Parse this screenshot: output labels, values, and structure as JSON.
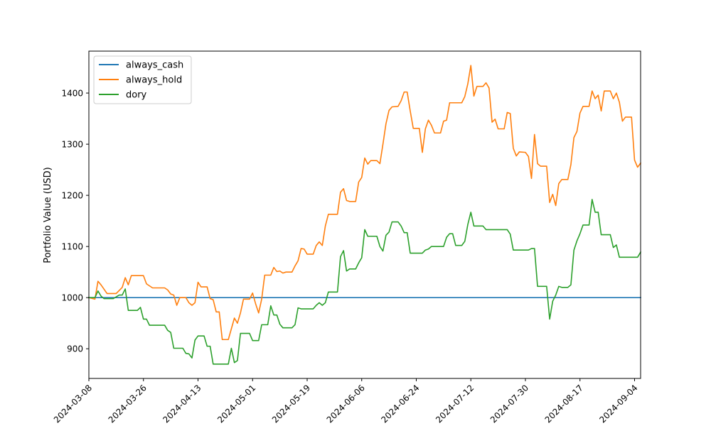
{
  "chart_data": {
    "type": "line",
    "title": "",
    "xlabel": "",
    "ylabel": "Portfolio Value (USD)",
    "x_tick_labels": [
      "2024-03-08",
      "2024-03-26",
      "2024-04-13",
      "2024-05-01",
      "2024-05-19",
      "2024-06-06",
      "2024-06-24",
      "2024-07-12",
      "2024-07-30",
      "2024-08-17",
      "2024-09-04"
    ],
    "y_ticks": [
      900,
      1000,
      1100,
      1200,
      1300,
      1400
    ],
    "xlim": [
      "2024-03-08",
      "2024-09-06"
    ],
    "ylim": [
      842,
      1482
    ],
    "grid": false,
    "legend_position": "upper-left",
    "series": [
      {
        "name": "always_cash",
        "color": "#1f77b4",
        "points": [
          [
            "2024-03-08",
            1000
          ],
          [
            "2024-09-06",
            1000
          ]
        ]
      },
      {
        "name": "always_hold",
        "color": "#ff7f0e",
        "points": [
          [
            "2024-03-08",
            1000
          ],
          [
            "2024-03-10",
            997
          ],
          [
            "2024-03-11",
            1032
          ],
          [
            "2024-03-12",
            1025
          ],
          [
            "2024-03-14",
            1008
          ],
          [
            "2024-03-17",
            1008
          ],
          [
            "2024-03-19",
            1020
          ],
          [
            "2024-03-20",
            1039
          ],
          [
            "2024-03-21",
            1025
          ],
          [
            "2024-03-22",
            1043
          ],
          [
            "2024-03-26",
            1043
          ],
          [
            "2024-03-27",
            1027
          ],
          [
            "2024-03-29",
            1019
          ],
          [
            "2024-04-02",
            1019
          ],
          [
            "2024-04-03",
            1015
          ],
          [
            "2024-04-04",
            1007
          ],
          [
            "2024-04-05",
            1005
          ],
          [
            "2024-04-06",
            985
          ],
          [
            "2024-04-07",
            1000
          ],
          [
            "2024-04-09",
            1000
          ],
          [
            "2024-04-10",
            990
          ],
          [
            "2024-04-11",
            985
          ],
          [
            "2024-04-12",
            990
          ],
          [
            "2024-04-13",
            1030
          ],
          [
            "2024-04-14",
            1021
          ],
          [
            "2024-04-16",
            1021
          ],
          [
            "2024-04-17",
            998
          ],
          [
            "2024-04-18",
            996
          ],
          [
            "2024-04-19",
            972
          ],
          [
            "2024-04-20",
            972
          ],
          [
            "2024-04-21",
            918
          ],
          [
            "2024-04-23",
            918
          ],
          [
            "2024-04-25",
            960
          ],
          [
            "2024-04-26",
            950
          ],
          [
            "2024-04-27",
            970
          ],
          [
            "2024-04-28",
            997
          ],
          [
            "2024-04-30",
            997
          ],
          [
            "2024-05-01",
            1009
          ],
          [
            "2024-05-02",
            988
          ],
          [
            "2024-05-03",
            970
          ],
          [
            "2024-05-04",
            997
          ],
          [
            "2024-05-05",
            1044
          ],
          [
            "2024-05-07",
            1044
          ],
          [
            "2024-05-08",
            1059
          ],
          [
            "2024-05-09",
            1051
          ],
          [
            "2024-05-10",
            1052
          ],
          [
            "2024-05-11",
            1048
          ],
          [
            "2024-05-12",
            1050
          ],
          [
            "2024-05-14",
            1050
          ],
          [
            "2024-05-15",
            1062
          ],
          [
            "2024-05-16",
            1072
          ],
          [
            "2024-05-17",
            1096
          ],
          [
            "2024-05-18",
            1095
          ],
          [
            "2024-05-19",
            1085
          ],
          [
            "2024-05-21",
            1085
          ],
          [
            "2024-05-22",
            1102
          ],
          [
            "2024-05-23",
            1109
          ],
          [
            "2024-05-24",
            1102
          ],
          [
            "2024-05-25",
            1140
          ],
          [
            "2024-05-26",
            1163
          ],
          [
            "2024-05-29",
            1163
          ],
          [
            "2024-05-30",
            1206
          ],
          [
            "2024-05-31",
            1213
          ],
          [
            "2024-06-01",
            1190
          ],
          [
            "2024-06-02",
            1188
          ],
          [
            "2024-06-04",
            1188
          ],
          [
            "2024-06-05",
            1226
          ],
          [
            "2024-06-06",
            1235
          ],
          [
            "2024-06-07",
            1273
          ],
          [
            "2024-06-08",
            1261
          ],
          [
            "2024-06-09",
            1268
          ],
          [
            "2024-06-11",
            1268
          ],
          [
            "2024-06-12",
            1262
          ],
          [
            "2024-06-13",
            1300
          ],
          [
            "2024-06-14",
            1340
          ],
          [
            "2024-06-15",
            1366
          ],
          [
            "2024-06-16",
            1373
          ],
          [
            "2024-06-18",
            1374
          ],
          [
            "2024-06-19",
            1385
          ],
          [
            "2024-06-20",
            1402
          ],
          [
            "2024-06-21",
            1402
          ],
          [
            "2024-06-22",
            1365
          ],
          [
            "2024-06-23",
            1331
          ],
          [
            "2024-06-25",
            1331
          ],
          [
            "2024-06-26",
            1284
          ],
          [
            "2024-06-27",
            1330
          ],
          [
            "2024-06-28",
            1347
          ],
          [
            "2024-06-29",
            1337
          ],
          [
            "2024-06-30",
            1322
          ],
          [
            "2024-07-02",
            1322
          ],
          [
            "2024-07-03",
            1345
          ],
          [
            "2024-07-04",
            1347
          ],
          [
            "2024-07-05",
            1381
          ],
          [
            "2024-07-09",
            1381
          ],
          [
            "2024-07-10",
            1393
          ],
          [
            "2024-07-11",
            1418
          ],
          [
            "2024-07-12",
            1454
          ],
          [
            "2024-07-13",
            1394
          ],
          [
            "2024-07-14",
            1413
          ],
          [
            "2024-07-16",
            1413
          ],
          [
            "2024-07-17",
            1420
          ],
          [
            "2024-07-18",
            1410
          ],
          [
            "2024-07-19",
            1343
          ],
          [
            "2024-07-20",
            1349
          ],
          [
            "2024-07-21",
            1330
          ],
          [
            "2024-07-23",
            1330
          ],
          [
            "2024-07-24",
            1362
          ],
          [
            "2024-07-25",
            1360
          ],
          [
            "2024-07-26",
            1292
          ],
          [
            "2024-07-27",
            1277
          ],
          [
            "2024-07-28",
            1285
          ],
          [
            "2024-07-30",
            1284
          ],
          [
            "2024-07-31",
            1276
          ],
          [
            "2024-08-01",
            1233
          ],
          [
            "2024-08-02",
            1319
          ],
          [
            "2024-08-03",
            1262
          ],
          [
            "2024-08-04",
            1257
          ],
          [
            "2024-08-06",
            1257
          ],
          [
            "2024-08-07",
            1186
          ],
          [
            "2024-08-08",
            1202
          ],
          [
            "2024-08-09",
            1180
          ],
          [
            "2024-08-10",
            1223
          ],
          [
            "2024-08-11",
            1231
          ],
          [
            "2024-08-13",
            1231
          ],
          [
            "2024-08-14",
            1260
          ],
          [
            "2024-08-15",
            1313
          ],
          [
            "2024-08-16",
            1325
          ],
          [
            "2024-08-17",
            1361
          ],
          [
            "2024-08-18",
            1374
          ],
          [
            "2024-08-20",
            1374
          ],
          [
            "2024-08-21",
            1404
          ],
          [
            "2024-08-22",
            1389
          ],
          [
            "2024-08-23",
            1396
          ],
          [
            "2024-08-24",
            1365
          ],
          [
            "2024-08-25",
            1404
          ],
          [
            "2024-08-27",
            1404
          ],
          [
            "2024-08-28",
            1389
          ],
          [
            "2024-08-29",
            1400
          ],
          [
            "2024-08-30",
            1382
          ],
          [
            "2024-08-31",
            1345
          ],
          [
            "2024-09-01",
            1353
          ],
          [
            "2024-09-03",
            1353
          ],
          [
            "2024-09-04",
            1269
          ],
          [
            "2024-09-05",
            1255
          ],
          [
            "2024-09-06",
            1263
          ]
        ]
      },
      {
        "name": "dory",
        "color": "#2ca02c",
        "points": [
          [
            "2024-03-08",
            1000
          ],
          [
            "2024-03-10",
            1000
          ],
          [
            "2024-03-11",
            1013
          ],
          [
            "2024-03-12",
            1003
          ],
          [
            "2024-03-13",
            998
          ],
          [
            "2024-03-16",
            998
          ],
          [
            "2024-03-18",
            1005
          ],
          [
            "2024-03-19",
            1005
          ],
          [
            "2024-03-20",
            1017
          ],
          [
            "2024-03-21",
            975
          ],
          [
            "2024-03-24",
            975
          ],
          [
            "2024-03-25",
            981
          ],
          [
            "2024-03-26",
            958
          ],
          [
            "2024-03-27",
            958
          ],
          [
            "2024-03-28",
            946
          ],
          [
            "2024-04-02",
            946
          ],
          [
            "2024-04-03",
            936
          ],
          [
            "2024-04-04",
            932
          ],
          [
            "2024-04-05",
            901
          ],
          [
            "2024-04-08",
            901
          ],
          [
            "2024-04-09",
            891
          ],
          [
            "2024-04-10",
            890
          ],
          [
            "2024-04-11",
            882
          ],
          [
            "2024-04-12",
            917
          ],
          [
            "2024-04-13",
            925
          ],
          [
            "2024-04-15",
            925
          ],
          [
            "2024-04-16",
            905
          ],
          [
            "2024-04-17",
            905
          ],
          [
            "2024-04-18",
            870
          ],
          [
            "2024-04-23",
            870
          ],
          [
            "2024-04-24",
            901
          ],
          [
            "2024-04-25",
            873
          ],
          [
            "2024-04-26",
            877
          ],
          [
            "2024-04-27",
            930
          ],
          [
            "2024-04-30",
            930
          ],
          [
            "2024-05-01",
            916
          ],
          [
            "2024-05-03",
            916
          ],
          [
            "2024-05-04",
            947
          ],
          [
            "2024-05-06",
            947
          ],
          [
            "2024-05-07",
            984
          ],
          [
            "2024-05-08",
            966
          ],
          [
            "2024-05-09",
            966
          ],
          [
            "2024-05-10",
            948
          ],
          [
            "2024-05-11",
            941
          ],
          [
            "2024-05-14",
            941
          ],
          [
            "2024-05-15",
            947
          ],
          [
            "2024-05-16",
            980
          ],
          [
            "2024-05-17",
            978
          ],
          [
            "2024-05-21",
            978
          ],
          [
            "2024-05-22",
            985
          ],
          [
            "2024-05-23",
            990
          ],
          [
            "2024-05-24",
            985
          ],
          [
            "2024-05-25",
            990
          ],
          [
            "2024-05-26",
            1011
          ],
          [
            "2024-05-29",
            1011
          ],
          [
            "2024-05-30",
            1080
          ],
          [
            "2024-05-31",
            1092
          ],
          [
            "2024-06-01",
            1052
          ],
          [
            "2024-06-02",
            1056
          ],
          [
            "2024-06-04",
            1056
          ],
          [
            "2024-06-05",
            1068
          ],
          [
            "2024-06-06",
            1078
          ],
          [
            "2024-06-07",
            1133
          ],
          [
            "2024-06-08",
            1120
          ],
          [
            "2024-06-11",
            1120
          ],
          [
            "2024-06-12",
            1100
          ],
          [
            "2024-06-13",
            1091
          ],
          [
            "2024-06-14",
            1122
          ],
          [
            "2024-06-15",
            1128
          ],
          [
            "2024-06-16",
            1148
          ],
          [
            "2024-06-18",
            1148
          ],
          [
            "2024-06-19",
            1140
          ],
          [
            "2024-06-20",
            1127
          ],
          [
            "2024-06-21",
            1127
          ],
          [
            "2024-06-22",
            1087
          ],
          [
            "2024-06-26",
            1087
          ],
          [
            "2024-06-27",
            1093
          ],
          [
            "2024-06-28",
            1095
          ],
          [
            "2024-06-29",
            1100
          ],
          [
            "2024-07-03",
            1100
          ],
          [
            "2024-07-04",
            1118
          ],
          [
            "2024-07-05",
            1125
          ],
          [
            "2024-07-06",
            1125
          ],
          [
            "2024-07-07",
            1102
          ],
          [
            "2024-07-09",
            1102
          ],
          [
            "2024-07-10",
            1110
          ],
          [
            "2024-07-11",
            1143
          ],
          [
            "2024-07-12",
            1167
          ],
          [
            "2024-07-13",
            1140
          ],
          [
            "2024-07-16",
            1140
          ],
          [
            "2024-07-17",
            1133
          ],
          [
            "2024-07-24",
            1133
          ],
          [
            "2024-07-25",
            1124
          ],
          [
            "2024-07-26",
            1093
          ],
          [
            "2024-07-31",
            1093
          ],
          [
            "2024-08-01",
            1096
          ],
          [
            "2024-08-02",
            1096
          ],
          [
            "2024-08-03",
            1022
          ],
          [
            "2024-08-06",
            1022
          ],
          [
            "2024-08-07",
            958
          ],
          [
            "2024-08-08",
            993
          ],
          [
            "2024-08-09",
            1005
          ],
          [
            "2024-08-10",
            1022
          ],
          [
            "2024-08-11",
            1020
          ],
          [
            "2024-08-13",
            1020
          ],
          [
            "2024-08-14",
            1025
          ],
          [
            "2024-08-15",
            1093
          ],
          [
            "2024-08-16",
            1111
          ],
          [
            "2024-08-17",
            1125
          ],
          [
            "2024-08-18",
            1142
          ],
          [
            "2024-08-20",
            1142
          ],
          [
            "2024-08-21",
            1192
          ],
          [
            "2024-08-22",
            1167
          ],
          [
            "2024-08-23",
            1167
          ],
          [
            "2024-08-24",
            1123
          ],
          [
            "2024-08-27",
            1123
          ],
          [
            "2024-08-28",
            1098
          ],
          [
            "2024-08-29",
            1103
          ],
          [
            "2024-08-30",
            1079
          ],
          [
            "2024-09-05",
            1079
          ],
          [
            "2024-09-06",
            1089
          ]
        ]
      }
    ]
  }
}
